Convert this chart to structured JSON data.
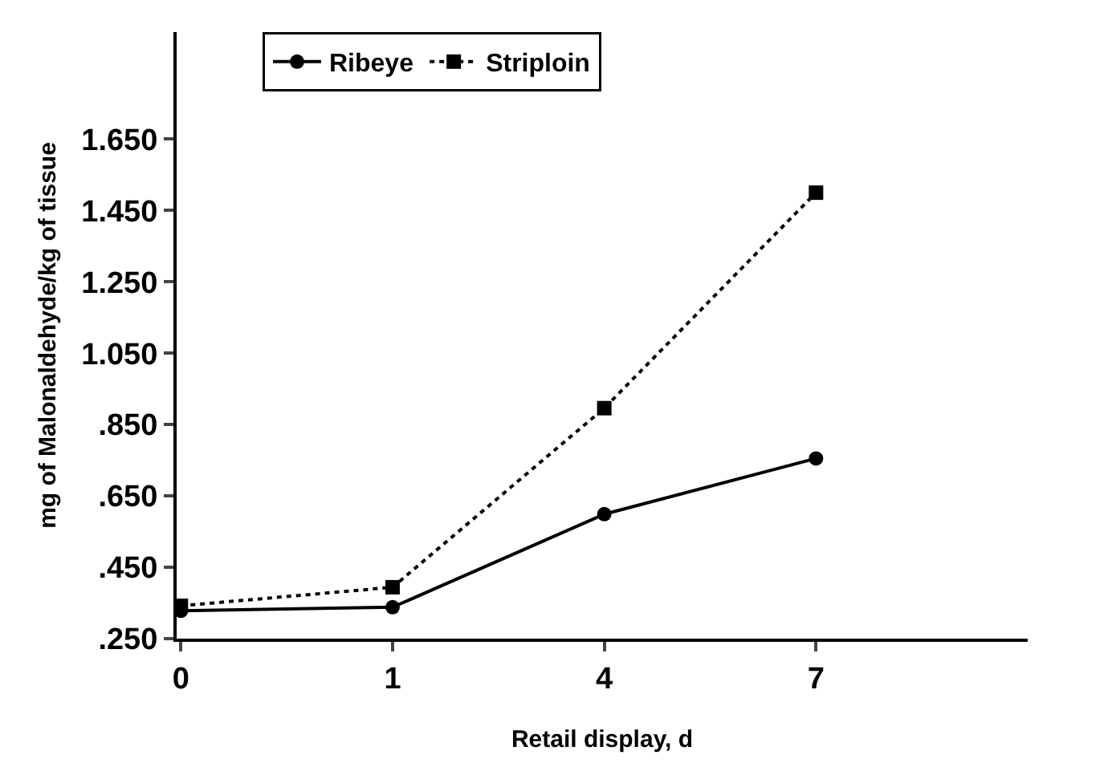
{
  "chart_data": {
    "type": "line",
    "xlabel": "Retail display, d",
    "ylabel": "mg of Malonaldehyde/kg of tissue",
    "categories": [
      "0",
      "1",
      "4",
      "7"
    ],
    "series": [
      {
        "name": "Ribeye",
        "color": "#000000",
        "values": [
          0.328,
          0.338,
          0.599,
          0.755
        ],
        "marker": "circle",
        "line_style": "solid"
      },
      {
        "name": "Striploin",
        "color": "#000000",
        "values": [
          0.342,
          0.394,
          0.896,
          1.5
        ],
        "marker": "square",
        "line_style": "dotted"
      }
    ],
    "ylim": [
      0.25,
      1.95
    ],
    "yticks": [
      {
        "value": 0.25,
        "label": ".250"
      },
      {
        "value": 0.45,
        "label": ".450"
      },
      {
        "value": 0.65,
        "label": ".650"
      },
      {
        "value": 0.85,
        "label": ".850"
      },
      {
        "value": 1.05,
        "label": "1.050"
      },
      {
        "value": 1.25,
        "label": "1.250"
      },
      {
        "value": 1.45,
        "label": "1.450"
      },
      {
        "value": 1.65,
        "label": "1.650"
      }
    ],
    "legend": "top"
  }
}
